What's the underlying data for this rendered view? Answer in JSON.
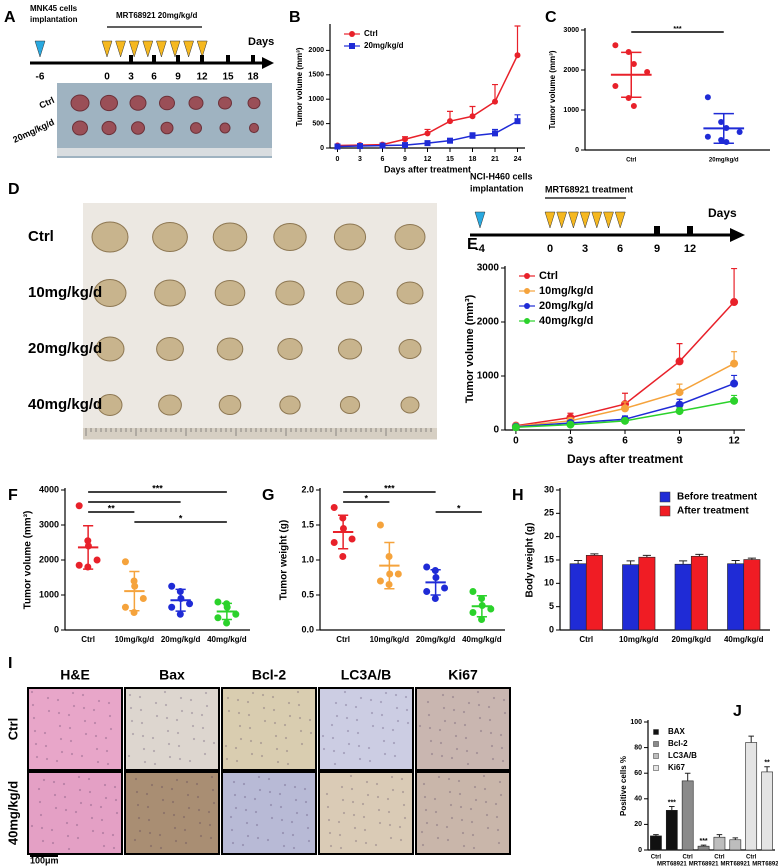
{
  "panel_a": {
    "label": "A",
    "implant": [
      "MNK45 cells",
      "implantation"
    ],
    "treatment": "MRT68921 20mg/kg/d",
    "days_label": "Days",
    "days": [
      "-6",
      "0",
      "3",
      "6",
      "9",
      "12",
      "15",
      "18"
    ],
    "rows": [
      "Ctrl",
      "20mg/kg/d"
    ]
  },
  "panel_d": {
    "label": "D",
    "rows": [
      "Ctrl",
      "10mg/kg/d",
      "20mg/kg/d",
      "40mg/kg/d"
    ]
  },
  "panel_e_timeline": {
    "implant": [
      "NCI-H460 cells",
      "implantation"
    ],
    "treatment": "MRT68921 treatment",
    "days_label": "Days",
    "days": [
      "-4",
      "0",
      "3",
      "6",
      "9",
      "12"
    ]
  },
  "panel_i": {
    "label": "I",
    "columns": [
      "H&E",
      "Bax",
      "Bcl-2",
      "LC3A/B",
      "Ki67"
    ],
    "rows": [
      "Ctrl",
      "40mg/kg/d"
    ],
    "scale": "100μm"
  },
  "chart_data": [
    {
      "panel": "B",
      "type": "line",
      "x": [
        0,
        3,
        6,
        9,
        12,
        15,
        18,
        21,
        24
      ],
      "xlim": [
        -1,
        25
      ],
      "xticks": [
        0,
        3,
        6,
        9,
        12,
        15,
        18,
        21,
        24
      ],
      "ylim": [
        0,
        2500
      ],
      "yticks": [
        0,
        500,
        1000,
        1500,
        2000
      ],
      "xlabel": "Days after treatment",
      "ylabel": "Tumor volume (mm³)",
      "legend": "top-left",
      "series": [
        {
          "name": "Ctrl",
          "color": "#e8212a",
          "marker": "circle",
          "values": [
            50,
            60,
            70,
            180,
            300,
            550,
            650,
            950,
            1900
          ],
          "errors": [
            20,
            20,
            30,
            50,
            80,
            200,
            200,
            350,
            600
          ]
        },
        {
          "name": "20mg/kg/d",
          "color": "#1f2bd6",
          "marker": "square",
          "values": [
            30,
            40,
            50,
            60,
            100,
            150,
            250,
            300,
            550
          ],
          "errors": [
            10,
            10,
            15,
            20,
            30,
            40,
            60,
            80,
            130
          ]
        }
      ]
    },
    {
      "panel": "C",
      "type": "dot",
      "categories": [
        "Ctrl",
        "20mg/kg/d"
      ],
      "colors": [
        "#e8212a",
        "#1f2bd6"
      ],
      "points": [
        [
          2620,
          2450,
          2150,
          1950,
          1600,
          1300,
          1100
        ],
        [
          1320,
          700,
          550,
          450,
          330,
          250,
          200
        ]
      ],
      "means": [
        1880,
        540
      ],
      "errors": [
        560,
        370
      ],
      "ylim": [
        0,
        3000
      ],
      "yticks": [
        0,
        1000,
        2000,
        3000
      ],
      "ylabel": "Tumor volume (mm³)",
      "brackets": [
        {
          "from": 0,
          "to": 1,
          "label": "***"
        }
      ]
    },
    {
      "panel": "E",
      "type": "line",
      "x": [
        0,
        3,
        6,
        9,
        12
      ],
      "xlim": [
        -0.6,
        12.6
      ],
      "xticks": [
        0,
        3,
        6,
        9,
        12
      ],
      "ylim": [
        0,
        3000
      ],
      "yticks": [
        0,
        1000,
        2000,
        3000
      ],
      "xlabel": "Days after treatment",
      "ylabel": "Tumor volume (mm³)",
      "legend": "top-left",
      "series": [
        {
          "name": "Ctrl",
          "color": "#e8212a",
          "marker": "circle",
          "values": [
            80,
            230,
            480,
            1270,
            2370
          ],
          "errors": [
            20,
            80,
            200,
            330,
            620
          ]
        },
        {
          "name": "10mg/kg/d",
          "color": "#f5a33c",
          "marker": "circle",
          "values": [
            70,
            170,
            400,
            700,
            1230
          ],
          "errors": [
            15,
            50,
            120,
            150,
            220
          ]
        },
        {
          "name": "20mg/kg/d",
          "color": "#1f2bd6",
          "marker": "circle",
          "values": [
            60,
            130,
            200,
            470,
            860
          ],
          "errors": [
            10,
            40,
            60,
            100,
            150
          ]
        },
        {
          "name": "40mg/kg/d",
          "color": "#2bd22b",
          "marker": "circle",
          "values": [
            50,
            100,
            170,
            350,
            540
          ],
          "errors": [
            10,
            30,
            40,
            60,
            100
          ]
        }
      ]
    },
    {
      "panel": "F",
      "type": "dot",
      "categories": [
        "Ctrl",
        "10mg/kg/d",
        "20mg/kg/d",
        "40mg/kg/d"
      ],
      "colors": [
        "#e8212a",
        "#f5a33c",
        "#1f2bd6",
        "#2bd22b"
      ],
      "points": [
        [
          3550,
          2550,
          2400,
          2000,
          1850,
          1800
        ],
        [
          1950,
          1400,
          1250,
          900,
          650,
          500
        ],
        [
          1250,
          1100,
          900,
          750,
          650,
          450
        ],
        [
          800,
          750,
          650,
          450,
          350,
          200
        ]
      ],
      "means": [
        2360,
        1110,
        850,
        530
      ],
      "errors": [
        620,
        560,
        310,
        230
      ],
      "ylim": [
        0,
        4000
      ],
      "yticks": [
        0,
        1000,
        2000,
        3000,
        4000
      ],
      "ylabel": "Tumor volume (mm³)",
      "brackets": [
        {
          "from": 0,
          "to": 3,
          "label": "***"
        },
        {
          "from": 0,
          "to": 2
        },
        {
          "from": 0,
          "to": 1,
          "label": "**"
        },
        {
          "from": 1,
          "to": 3,
          "label": "*"
        }
      ]
    },
    {
      "panel": "G",
      "type": "dot",
      "categories": [
        "Ctrl",
        "10mg/kg/d",
        "20mg/kg/d",
        "40mg/kg/d"
      ],
      "colors": [
        "#e8212a",
        "#f5a33c",
        "#1f2bd6",
        "#2bd22b"
      ],
      "points": [
        [
          1.75,
          1.6,
          1.45,
          1.3,
          1.25,
          1.05
        ],
        [
          1.5,
          1.05,
          0.8,
          0.8,
          0.7,
          0.65
        ],
        [
          0.9,
          0.85,
          0.75,
          0.6,
          0.55,
          0.45
        ],
        [
          0.55,
          0.45,
          0.35,
          0.3,
          0.25,
          0.15
        ]
      ],
      "means": [
        1.4,
        0.92,
        0.68,
        0.34
      ],
      "errors": [
        0.24,
        0.33,
        0.18,
        0.15
      ],
      "ylim": [
        0,
        2
      ],
      "yticks": [
        {
          "value": 0,
          "label": "0.0"
        },
        0.5,
        {
          "value": 1,
          "label": "1.0"
        },
        1.5,
        {
          "value": 2,
          "label": "2.0"
        }
      ],
      "ylabel": "Tumor weight (g)",
      "brackets": [
        {
          "from": 0,
          "to": 2,
          "label": "***"
        },
        {
          "from": 0,
          "to": 1,
          "label": "*"
        },
        {
          "from": 2,
          "to": 3,
          "label": "*"
        }
      ]
    },
    {
      "panel": "H",
      "type": "bar",
      "categories": [
        "Ctrl",
        "10mg/kg/d",
        "20mg/kg/d",
        "40mg/kg/d"
      ],
      "ylim": [
        0,
        30
      ],
      "yticks": [
        0,
        5,
        10,
        15,
        20,
        25,
        30
      ],
      "ylabel": "Body weight (g)",
      "legend": "top-right",
      "series": [
        {
          "name": "Before treatment",
          "color": "#1f2bd6",
          "values": [
            14.2,
            14.0,
            14.1,
            14.2
          ],
          "errors": [
            0.7,
            0.8,
            0.7,
            0.7
          ]
        },
        {
          "name": "After treatment",
          "color": "#f01c24",
          "values": [
            16.0,
            15.6,
            15.8,
            15.1
          ],
          "errors": [
            0.3,
            0.4,
            0.4,
            0.3
          ]
        }
      ]
    },
    {
      "panel": "J",
      "type": "bar",
      "categories": [
        "Ctrl",
        "MRT68921",
        "Ctrl",
        "MRT68921",
        "Ctrl",
        "MRT68921",
        "Ctrl",
        "MRT68921"
      ],
      "ylim": [
        0,
        100
      ],
      "yticks": [
        0,
        20,
        40,
        60,
        80,
        100
      ],
      "ylabel": "Positive cells %",
      "legend": "top-left",
      "series": [
        {
          "name": "BAX",
          "color": "#111111",
          "values": [
            11,
            31,
            null,
            null,
            null,
            null,
            null,
            null
          ],
          "errors": [
            1,
            3,
            null,
            null,
            null,
            null,
            null,
            null
          ],
          "sig": [
            null,
            "***",
            null,
            null,
            null,
            null,
            null,
            null
          ]
        },
        {
          "name": "Bcl-2",
          "color": "#8a8a8a",
          "values": [
            null,
            null,
            54,
            3,
            null,
            null,
            null,
            null
          ],
          "errors": [
            null,
            null,
            6,
            0.8,
            null,
            null,
            null,
            null
          ],
          "sig": [
            null,
            null,
            null,
            "***",
            null,
            null,
            null,
            null
          ]
        },
        {
          "name": "LC3A/B",
          "color": "#bdbdbd",
          "values": [
            null,
            null,
            null,
            null,
            10,
            8,
            null,
            null
          ],
          "errors": [
            null,
            null,
            null,
            null,
            2,
            1.5,
            null,
            null
          ],
          "sig": [
            null,
            null,
            null,
            null,
            null,
            null,
            null,
            null
          ]
        },
        {
          "name": "Ki67",
          "color": "#e4e4e4",
          "values": [
            null,
            null,
            null,
            null,
            null,
            null,
            84,
            61
          ],
          "errors": [
            null,
            null,
            null,
            null,
            null,
            null,
            5,
            4
          ],
          "sig": [
            null,
            null,
            null,
            null,
            null,
            null,
            null,
            "**"
          ]
        }
      ]
    }
  ]
}
